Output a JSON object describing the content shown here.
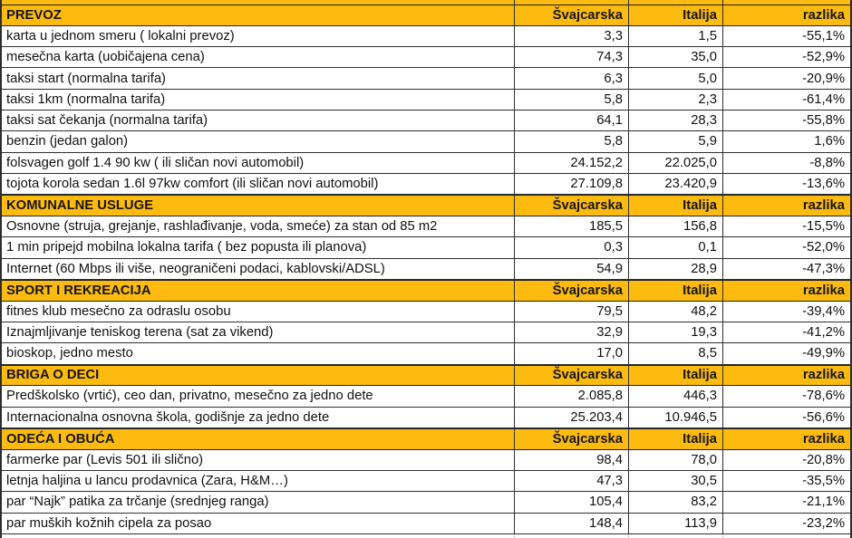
{
  "colors": {
    "section_header_bg": "#FCBB0E",
    "grid_border": "#2E2E2E",
    "text": "#111111"
  },
  "columns": [
    "Švajcarska",
    "Italija",
    "razlika"
  ],
  "sections": [
    {
      "title": "PREVOZ",
      "rows": [
        {
          "label": "karta u jednom smeru ( lokalni prevoz)",
          "svajcarska": "3,3",
          "italija": "1,5",
          "razlika": "-55,1%"
        },
        {
          "label": "mesečna karta (uobičajena cena)",
          "svajcarska": "74,3",
          "italija": "35,0",
          "razlika": "-52,9%"
        },
        {
          "label": "taksi start (normalna tarifa)",
          "svajcarska": "6,3",
          "italija": "5,0",
          "razlika": "-20,9%"
        },
        {
          "label": "taksi 1km (normalna tarifa)",
          "svajcarska": "5,8",
          "italija": "2,3",
          "razlika": "-61,4%"
        },
        {
          "label": "taksi sat čekanja (normalna tarifa)",
          "svajcarska": "64,1",
          "italija": "28,3",
          "razlika": "-55,8%"
        },
        {
          "label": "benzin (jedan galon)",
          "svajcarska": "5,8",
          "italija": "5,9",
          "razlika": "1,6%"
        },
        {
          "label": "folsvagen golf 1.4 90 kw ( ili sličan novi automobil)",
          "svajcarska": "24.152,2",
          "italija": "22.025,0",
          "razlika": "-8,8%"
        },
        {
          "label": "tojota korola sedan 1.6l 97kw comfort (ili sličan novi automobil)",
          "svajcarska": "27.109,8",
          "italija": "23.420,9",
          "razlika": "-13,6%"
        }
      ]
    },
    {
      "title": "KOMUNALNE USLUGE",
      "rows": [
        {
          "label": "Osnovne (struja, grejanje, rashlađivanje, voda, smeće) za stan od 85 m2",
          "svajcarska": "185,5",
          "italija": "156,8",
          "razlika": "-15,5%"
        },
        {
          "label": "1 min pripejd mobilna lokalna tarifa ( bez popusta ili planova)",
          "svajcarska": "0,3",
          "italija": "0,1",
          "razlika": "-52,0%"
        },
        {
          "label": "Internet (60 Mbps ili više, neograničeni podaci, kablovski/ADSL)",
          "svajcarska": "54,9",
          "italija": "28,9",
          "razlika": "-47,3%"
        }
      ]
    },
    {
      "title": "SPORT I REKREACIJA",
      "rows": [
        {
          "label": "fitnes klub mesečno za odraslu osobu",
          "svajcarska": "79,5",
          "italija": "48,2",
          "razlika": "-39,4%"
        },
        {
          "label": "Iznajmljivanje teniskog terena (sat za vikend)",
          "svajcarska": "32,9",
          "italija": "19,3",
          "razlika": "-41,2%"
        },
        {
          "label": "bioskop, jedno mesto",
          "svajcarska": "17,0",
          "italija": "8,5",
          "razlika": "-49,9%"
        }
      ]
    },
    {
      "title": "BRIGA O DECI",
      "rows": [
        {
          "label": "Predškolsko (vrtić), ceo dan, privatno, mesečno za jedno dete",
          "svajcarska": "2.085,8",
          "italija": "446,3",
          "razlika": "-78,6%"
        },
        {
          "label": "Internacionalna osnovna škola, godišnje za jedno dete",
          "svajcarska": "25.203,4",
          "italija": "10.946,5",
          "razlika": "-56,6%"
        }
      ]
    },
    {
      "title": "ODEĆA I OBUĆA",
      "rows": [
        {
          "label": "farmerke par (Levis 501 ili slično)",
          "svajcarska": "98,4",
          "italija": "78,0",
          "razlika": "-20,8%"
        },
        {
          "label": "letnja haljina u lancu prodavnica (Zara, H&M…)",
          "svajcarska": "47,3",
          "italija": "30,5",
          "razlika": "-35,5%"
        },
        {
          "label": "par “Najk” patika za trčanje (srednjeg ranga)",
          "svajcarska": "105,4",
          "italija": "83,2",
          "razlika": "-21,1%"
        },
        {
          "label": "par muških kožnih cipela za posao",
          "svajcarska": "148,4",
          "italija": "113,9",
          "razlika": "-23,2%"
        }
      ]
    }
  ]
}
